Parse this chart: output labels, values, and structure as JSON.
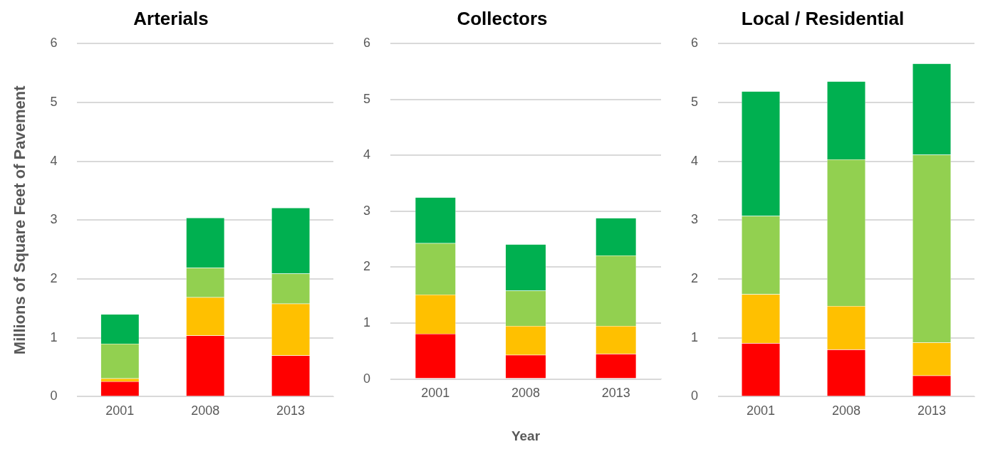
{
  "chart_data": [
    {
      "type": "bar",
      "title": "Arterials",
      "ylabel": "Millions of Square Feet of Pavement",
      "categories": [
        "2001",
        "2008",
        "2013"
      ],
      "stacked": true,
      "ylim": [
        0,
        6
      ],
      "yticks": [
        0,
        1,
        2,
        3,
        4,
        5,
        6
      ],
      "grid": "y",
      "legend": false,
      "series": [
        {
          "color": "#ff0000",
          "values": [
            0.26,
            1.04,
            0.7
          ]
        },
        {
          "color": "#ffc000",
          "values": [
            0.05,
            0.65,
            0.88
          ]
        },
        {
          "color": "#92d050",
          "values": [
            0.59,
            0.5,
            0.51
          ]
        },
        {
          "color": "#00b050",
          "values": [
            0.5,
            0.85,
            1.12
          ]
        }
      ]
    },
    {
      "type": "bar",
      "title": "Collectors",
      "xlabel": "Year",
      "categories": [
        "2001",
        "2008",
        "2013"
      ],
      "stacked": true,
      "ylim": [
        0,
        6
      ],
      "yticks": [
        0,
        1,
        2,
        3,
        4,
        5,
        6
      ],
      "grid": "y",
      "legend": false,
      "series": [
        {
          "color": "#ff0000",
          "values": [
            0.81,
            0.43,
            0.45
          ]
        },
        {
          "color": "#ffc000",
          "values": [
            0.7,
            0.52,
            0.5
          ]
        },
        {
          "color": "#92d050",
          "values": [
            0.92,
            0.63,
            1.26
          ]
        },
        {
          "color": "#00b050",
          "values": [
            0.82,
            0.83,
            0.67
          ]
        }
      ]
    },
    {
      "type": "bar",
      "title": "Local / Residential",
      "categories": [
        "2001",
        "2008",
        "2013"
      ],
      "stacked": true,
      "ylim": [
        0,
        6
      ],
      "yticks": [
        0,
        1,
        2,
        3,
        4,
        5,
        6
      ],
      "grid": "y",
      "legend": false,
      "series": [
        {
          "color": "#ff0000",
          "values": [
            0.91,
            0.8,
            0.36
          ]
        },
        {
          "color": "#ffc000",
          "values": [
            0.83,
            0.74,
            0.56
          ]
        },
        {
          "color": "#92d050",
          "values": [
            1.33,
            2.49,
            3.19
          ]
        },
        {
          "color": "#00b050",
          "values": [
            2.12,
            1.33,
            1.55
          ]
        }
      ]
    }
  ]
}
